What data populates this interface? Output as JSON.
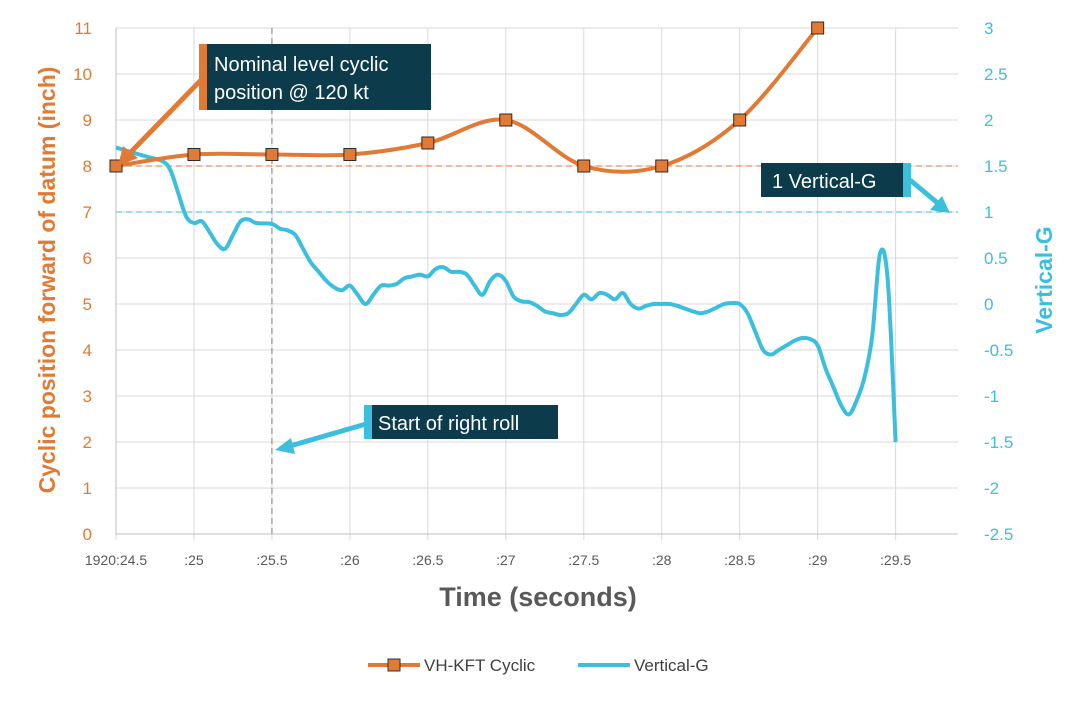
{
  "colors": {
    "cyclic": "#e07a34",
    "vertical_g": "#3cbfdc",
    "callout_bg": "#0c3b4c",
    "grid": "#d9d9d9"
  },
  "chart_data": {
    "type": "line",
    "title": "",
    "xlabel": "Time (seconds)",
    "ylabel_left": "Cyclic position forward of datum (inch)",
    "ylabel_right": "Vertical-G",
    "x_tick_labels": [
      "1920:24.5",
      ":25",
      ":25.5",
      ":26",
      ":26.5",
      ":27",
      ":27.5",
      ":28",
      ":28.5",
      ":29",
      ":29.5"
    ],
    "x_tick_values": [
      24.5,
      25,
      25.5,
      26,
      26.5,
      27,
      27.5,
      28,
      28.5,
      29,
      29.5
    ],
    "xlim": [
      24.5,
      29.9
    ],
    "ylim_left": [
      0,
      11
    ],
    "ylim_right": [
      -2.5,
      3
    ],
    "y_ticks_left": [
      "0",
      "1",
      "2",
      "3",
      "4",
      "5",
      "6",
      "7",
      "8",
      "9",
      "10",
      "11"
    ],
    "y_ticks_right": [
      "-2.5",
      "-2",
      "-1.5",
      "-1",
      "-0.5",
      "0",
      "0.5",
      "1",
      "1.5",
      "2",
      "2.5",
      "3"
    ],
    "y_tick_values_right": [
      -2.5,
      -2,
      -1.5,
      -1,
      -0.5,
      0,
      0.5,
      1,
      1.5,
      2,
      2.5,
      3
    ],
    "grid": "horizontal",
    "legend_position": "bottom",
    "series": [
      {
        "name": "VH-KFT Cyclic",
        "axis": "left",
        "marker": "square",
        "x": [
          24.5,
          25,
          25.5,
          26,
          26.5,
          27,
          27.5,
          28,
          28.5,
          29
        ],
        "y": [
          8,
          8.25,
          8.25,
          8.25,
          8.5,
          9,
          8,
          8,
          9,
          11
        ]
      },
      {
        "name": "Vertical-G",
        "axis": "right",
        "marker": "none",
        "x": [
          24.5,
          24.6,
          24.7,
          24.8,
          24.85,
          24.9,
          24.95,
          25.0,
          25.05,
          25.1,
          25.15,
          25.2,
          25.25,
          25.3,
          25.35,
          25.4,
          25.5,
          25.55,
          25.6,
          25.65,
          25.7,
          25.75,
          25.8,
          25.85,
          25.9,
          25.95,
          26.0,
          26.05,
          26.1,
          26.15,
          26.2,
          26.25,
          26.3,
          26.35,
          26.4,
          26.45,
          26.5,
          26.55,
          26.6,
          26.65,
          26.7,
          26.75,
          26.8,
          26.85,
          26.9,
          26.95,
          27.0,
          27.05,
          27.1,
          27.15,
          27.2,
          27.25,
          27.3,
          27.35,
          27.4,
          27.45,
          27.5,
          27.55,
          27.6,
          27.65,
          27.7,
          27.75,
          27.8,
          27.85,
          27.9,
          27.95,
          28.0,
          28.05,
          28.1,
          28.15,
          28.2,
          28.25,
          28.3,
          28.35,
          28.4,
          28.45,
          28.5,
          28.55,
          28.6,
          28.65,
          28.7,
          28.75,
          28.8,
          28.85,
          28.9,
          28.95,
          29.0,
          29.05,
          29.1,
          29.15,
          29.2,
          29.25,
          29.3,
          29.35,
          29.4,
          29.45,
          29.5
        ],
        "y": [
          1.7,
          1.65,
          1.6,
          1.55,
          1.45,
          1.2,
          0.95,
          0.88,
          0.9,
          0.78,
          0.65,
          0.6,
          0.75,
          0.9,
          0.92,
          0.88,
          0.87,
          0.82,
          0.8,
          0.75,
          0.6,
          0.45,
          0.35,
          0.25,
          0.18,
          0.15,
          0.2,
          0.1,
          0.0,
          0.1,
          0.2,
          0.2,
          0.22,
          0.28,
          0.3,
          0.32,
          0.3,
          0.38,
          0.4,
          0.35,
          0.35,
          0.32,
          0.2,
          0.1,
          0.25,
          0.32,
          0.25,
          0.08,
          0.03,
          0.02,
          -0.02,
          -0.08,
          -0.1,
          -0.12,
          -0.1,
          0.0,
          0.1,
          0.05,
          0.12,
          0.1,
          0.05,
          0.12,
          0.0,
          -0.05,
          -0.02,
          0.0,
          0.0,
          0.0,
          -0.02,
          -0.05,
          -0.08,
          -0.1,
          -0.08,
          -0.04,
          0.0,
          0.01,
          0.0,
          -0.1,
          -0.3,
          -0.5,
          -0.55,
          -0.5,
          -0.45,
          -0.4,
          -0.37,
          -0.38,
          -0.45,
          -0.7,
          -0.9,
          -1.1,
          -1.2,
          -1.05,
          -0.8,
          -0.35,
          0.55,
          0.25,
          -1.5
        ]
      }
    ],
    "reference_lines": [
      {
        "axis": "left",
        "value": 8,
        "orientation": "horizontal",
        "color": "#e07a34",
        "style": "dashed"
      },
      {
        "axis": "left",
        "value": 7,
        "orientation": "horizontal",
        "color": "#3cbfdc",
        "style": "dashed"
      },
      {
        "axis": "x",
        "value": 25.5,
        "orientation": "vertical",
        "color": "#7f7f7f",
        "style": "dashed"
      }
    ],
    "annotations": [
      {
        "text_lines": [
          "Nominal level cyclic",
          "position @ 120 kt"
        ],
        "accent": "#e07a34",
        "pointer": "left-axis cyclic value at 24.5"
      },
      {
        "text_lines": [
          "1 Vertical-G"
        ],
        "accent": "#3cbfdc",
        "pointer": "right axis value 1"
      },
      {
        "text_lines": [
          "Start of right roll"
        ],
        "accent": "#3cbfdc",
        "pointer": "time 25.5 dashed line"
      }
    ]
  }
}
